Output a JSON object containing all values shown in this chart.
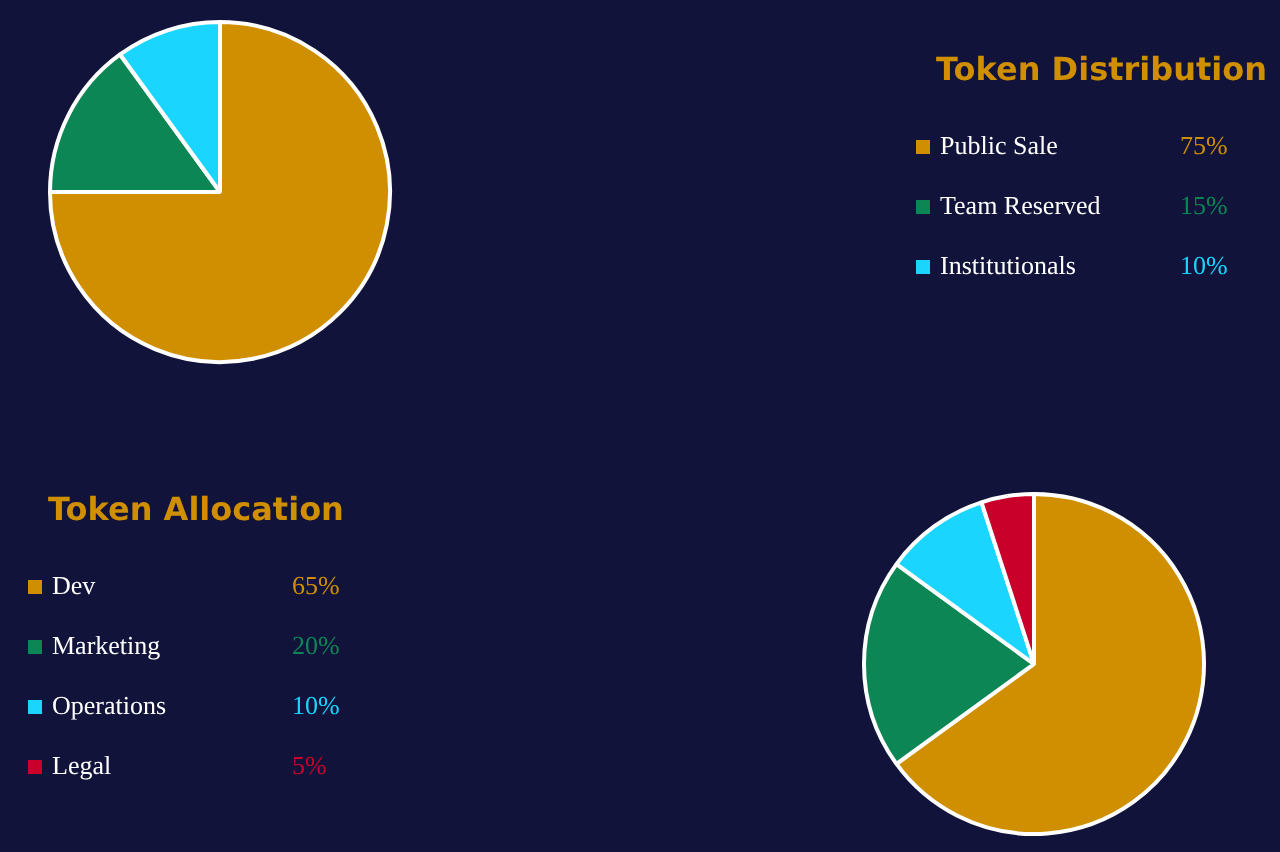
{
  "chart_data": [
    {
      "type": "pie",
      "title": "Token Distribution",
      "categories": [
        "Public Sale",
        "Team Reserved",
        "Institutionals"
      ],
      "values": [
        75,
        15,
        10
      ],
      "colors": [
        "#d08f00",
        "#0d8655",
        "#1ad6ff"
      ],
      "value_labels": [
        "75%",
        "15%",
        "10%"
      ],
      "legend": "right"
    },
    {
      "type": "pie",
      "title": "Token Allocation",
      "categories": [
        "Dev",
        "Marketing",
        "Operations",
        "Legal"
      ],
      "values": [
        65,
        20,
        10,
        5
      ],
      "colors": [
        "#d08f00",
        "#0d8655",
        "#1ad6ff",
        "#c8002a"
      ],
      "value_labels": [
        "65%",
        "20%",
        "10%",
        "5%"
      ],
      "legend": "left"
    }
  ]
}
